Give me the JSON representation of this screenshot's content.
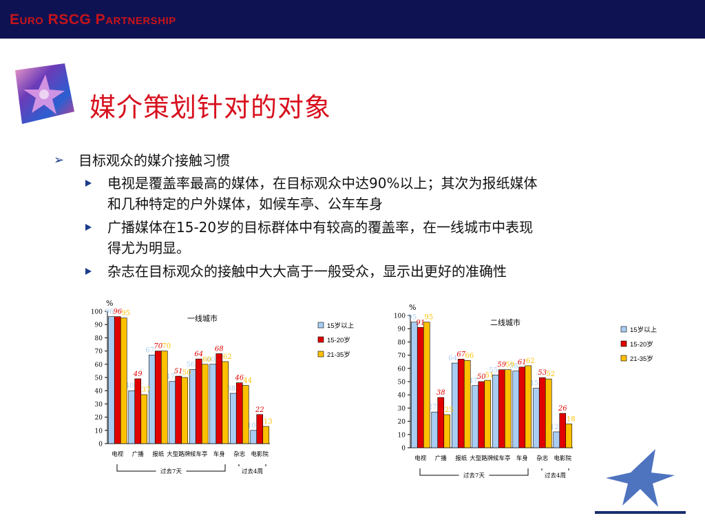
{
  "header": {
    "brand": "Euro RSCG Partnership",
    "brand_color": "#c7141a",
    "bar_color": "#0f1252"
  },
  "slide": {
    "title": "媒介策划针对的对象",
    "title_color": "#d8101e"
  },
  "bullets": {
    "main": "目标观众的媒介接触习惯",
    "items": [
      [
        "电视是覆盖率最高的媒体，在目标观众中达90%以上；其次为报纸媒体",
        "和几种特定的户外媒体，如候车亭、公车车身"
      ],
      [
        "广播媒体在15-20岁的目标群体中有较高的覆盖率，在一线城市中表现",
        "得尤为明显。"
      ],
      [
        "杂志在目标观众的接触中大大高于一般受众，显示出更好的准确性"
      ]
    ]
  },
  "chart_data": [
    {
      "type": "bar",
      "title": "一线城市",
      "ylabel": "%",
      "ylim": [
        0,
        100
      ],
      "yticks": [
        0,
        10,
        20,
        30,
        40,
        50,
        60,
        70,
        80,
        90,
        100
      ],
      "categories": [
        "电视",
        "广播",
        "报纸",
        "大型路牌",
        "候车亭",
        "车身",
        "杂志",
        "电影院"
      ],
      "series": [
        {
          "name": "15岁以上",
          "color": "#a9cdf2",
          "values": [
            96,
            40,
            67,
            47,
            56,
            60,
            38,
            10
          ]
        },
        {
          "name": "15-20岁",
          "color": "#e00000",
          "values": [
            96,
            49,
            70,
            51,
            64,
            68,
            46,
            22
          ]
        },
        {
          "name": "21-35岁",
          "color": "#ffc000",
          "values": [
            95,
            37,
            70,
            50,
            60,
            62,
            44,
            13
          ]
        }
      ],
      "value_labels": [
        [
          "96",
          "40",
          "67",
          "47",
          "56",
          "60",
          "38",
          "10"
        ],
        [
          "96",
          "49",
          "70",
          "51",
          "64",
          "68",
          "46",
          "22"
        ],
        [
          "95",
          "37",
          "70",
          "50",
          "60",
          "62",
          "44",
          "13"
        ]
      ],
      "groups": [
        {
          "label": "过去7天",
          "from": 0,
          "to": 5
        },
        {
          "label": "过去4周",
          "from": 6,
          "to": 7
        }
      ],
      "legend_position": "top-right"
    },
    {
      "type": "bar",
      "title": "二线城市",
      "ylabel": "%",
      "ylim": [
        0,
        100
      ],
      "yticks": [
        0,
        10,
        20,
        30,
        40,
        50,
        60,
        70,
        80,
        90,
        100
      ],
      "categories": [
        "电视",
        "广播",
        "报纸",
        "大型路牌",
        "候车亭",
        "车身",
        "杂志",
        "电影院"
      ],
      "series": [
        {
          "name": "15岁以上",
          "color": "#a9cdf2",
          "values": [
            95,
            27,
            64,
            47,
            55,
            58,
            45,
            12
          ]
        },
        {
          "name": "15-20岁",
          "color": "#e00000",
          "values": [
            91,
            38,
            67,
            50,
            59,
            61,
            53,
            26
          ]
        },
        {
          "name": "21-35岁",
          "color": "#ffc000",
          "values": [
            95,
            25,
            66,
            51,
            59,
            62,
            52,
            18
          ]
        }
      ],
      "value_labels": [
        [
          "95",
          "27",
          "64",
          "47",
          "55",
          "58",
          "45",
          "12"
        ],
        [
          "91",
          "38",
          "67",
          "50",
          "59",
          "61",
          "53",
          "26"
        ],
        [
          "95",
          "25",
          "66",
          "51",
          "59",
          "62",
          "52",
          "18"
        ]
      ],
      "groups": [
        {
          "label": "过去7天",
          "from": 0,
          "to": 5
        },
        {
          "label": "过去4周",
          "from": 6,
          "to": 7
        }
      ],
      "legend_position": "top-right"
    }
  ]
}
